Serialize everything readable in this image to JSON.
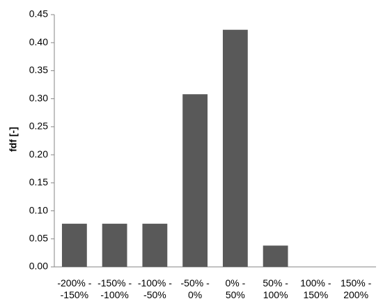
{
  "chart_data": {
    "type": "bar",
    "y_label": "fdf [-]",
    "categories": [
      "-200% -\n-150%",
      "-150% -\n-100%",
      "-100% -\n-50%",
      "-50% -\n0%",
      "0% -\n50%",
      "50% -\n100%",
      "100% -\n150%",
      "150% -\n200%"
    ],
    "values": [
      0.077,
      0.077,
      0.077,
      0.308,
      0.423,
      0.038,
      0,
      0
    ],
    "color": "#595959",
    "ylim": [
      0,
      0.45
    ],
    "yticks": [
      {
        "value": 0,
        "label": "0.00"
      },
      {
        "value": 0.05,
        "label": "0.05"
      },
      {
        "value": 0.1,
        "label": "0.10"
      },
      {
        "value": 0.15,
        "label": "0.15"
      },
      {
        "value": 0.2,
        "label": "0.20"
      },
      {
        "value": 0.25,
        "label": "0.25"
      },
      {
        "value": 0.3,
        "label": "0.30"
      },
      {
        "value": 0.35,
        "label": "0.35"
      },
      {
        "value": 0.4,
        "label": "0.40"
      },
      {
        "value": 0.45,
        "label": "0.45"
      }
    ],
    "grid": false
  }
}
